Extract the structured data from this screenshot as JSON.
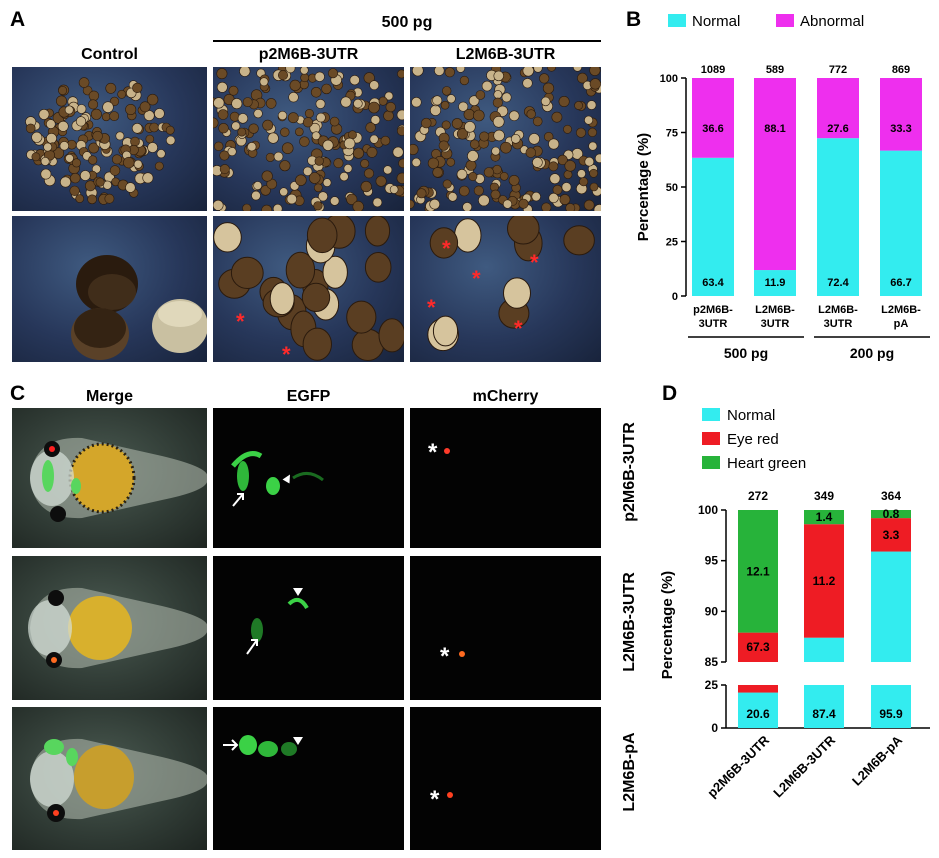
{
  "panel_a": {
    "letter": "A",
    "dose_header": "500 pg",
    "col_titles": [
      "Control",
      "p2M6B-3UTR",
      "L2M6B-3UTR"
    ]
  },
  "panel_b": {
    "letter": "B",
    "dose_groups": [
      "500 pg",
      "200 pg"
    ]
  },
  "panel_c": {
    "letter": "C",
    "col_titles": [
      "Merge",
      "EGFP",
      "mCherry"
    ],
    "row_titles": [
      "p2M6B-3UTR",
      "L2M6B-3UTR",
      "L2M6B-pA"
    ]
  },
  "panel_d": {
    "letter": "D"
  },
  "colors": {
    "normal": "#33ecef",
    "abnormal": "#ee2fee",
    "eye_red": "#ee1c24",
    "heart_green": "#27b33a",
    "asterisk": "#ff2a2a"
  },
  "chart_data": [
    {
      "id": "B",
      "type": "bar",
      "stacked": true,
      "ylabel": "Percentage (%)",
      "ylim": [
        0,
        100
      ],
      "yticks": [
        "0",
        "25",
        "50",
        "75",
        "100"
      ],
      "categories": [
        "p2M6B-3UTR",
        "L2M6B-3UTR",
        "L2M6B-3UTR",
        "L2M6B-pA"
      ],
      "category_lines": [
        [
          "p2M6B-",
          "3UTR"
        ],
        [
          "L2M6B-",
          "3UTR"
        ],
        [
          "L2M6B-",
          "3UTR"
        ],
        [
          "L2M6B-",
          "pA"
        ]
      ],
      "group_labels": [
        "500 pg",
        "500 pg",
        "200 pg",
        "200 pg"
      ],
      "n_labels": [
        "1089",
        "589",
        "772",
        "869"
      ],
      "series": [
        {
          "name": "Normal",
          "values": [
            63.4,
            11.9,
            72.4,
            66.7
          ],
          "labels": [
            "63.4",
            "11.9",
            "72.4",
            "66.7"
          ]
        },
        {
          "name": "Abnormal",
          "values": [
            36.6,
            88.1,
            27.6,
            33.3
          ],
          "labels": [
            "36.6",
            "88.1",
            "27.6",
            "33.3"
          ]
        }
      ],
      "legend_position": "top"
    },
    {
      "id": "D",
      "type": "bar",
      "stacked": true,
      "broken_axis": true,
      "ylabel": "Percentage (%)",
      "ylim_upper": [
        85,
        100
      ],
      "ylim_lower": [
        0,
        25
      ],
      "yticks_upper": [
        "85",
        "90",
        "95",
        "100"
      ],
      "yticks_lower": [
        "0",
        "25"
      ],
      "categories": [
        "p2M6B-3UTR",
        "L2M6B-3UTR",
        "L2M6B-pA"
      ],
      "n_labels": [
        "272",
        "349",
        "364"
      ],
      "series": [
        {
          "name": "Normal",
          "values": [
            20.6,
            87.4,
            95.9
          ],
          "labels": [
            "20.6",
            "87.4",
            "95.9"
          ]
        },
        {
          "name": "Eye red",
          "values": [
            67.3,
            11.2,
            3.3
          ],
          "labels": [
            "67.3",
            "11.2",
            "3.3"
          ]
        },
        {
          "name": "Heart green",
          "values": [
            12.1,
            1.4,
            0.8
          ],
          "labels": [
            "12.1",
            "1.4",
            "0.8"
          ]
        }
      ],
      "legend_position": "top-left"
    }
  ]
}
